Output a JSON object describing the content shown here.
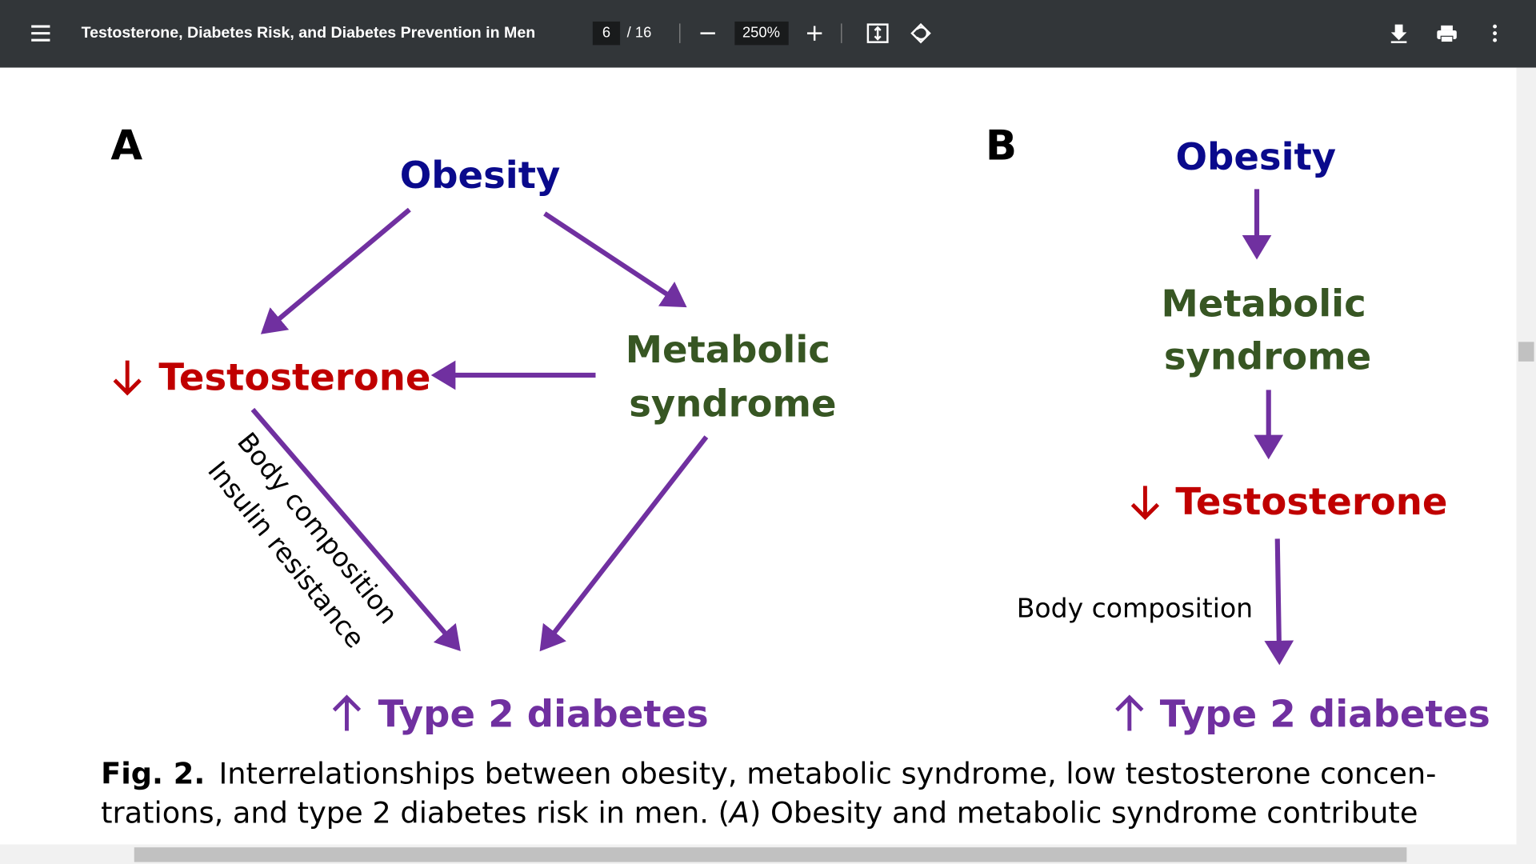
{
  "toolbar": {
    "title": "Testosterone, Diabetes Risk, and Diabetes Prevention in Men",
    "page_current": "6",
    "page_total": "/ 16",
    "zoom": "250%"
  },
  "figure": {
    "panel_a": {
      "label": "A",
      "obesity": "Obesity",
      "metabolic_line1": "Metabolic",
      "metabolic_line2": "syndrome",
      "testosterone": "Testosterone",
      "body_composition": "Body composition",
      "insulin_resistance": "Insulin resistance",
      "diabetes": "Type 2 diabetes"
    },
    "panel_b": {
      "label": "B",
      "obesity": "Obesity",
      "metabolic_line1": "Metabolic",
      "metabolic_line2": "syndrome",
      "testosterone": "Testosterone",
      "body_composition": "Body composition",
      "diabetes": "Type 2 diabetes"
    }
  },
  "caption": {
    "label": "Fig. 2.",
    "line1": "Interrelationships between obesity, metabolic syndrome, low testosterone concen-",
    "line2_a": "trations, and type 2 diabetes risk in men. (",
    "line2_italic": "A",
    "line2_b": ") Obesity and metabolic syndrome contribute"
  }
}
